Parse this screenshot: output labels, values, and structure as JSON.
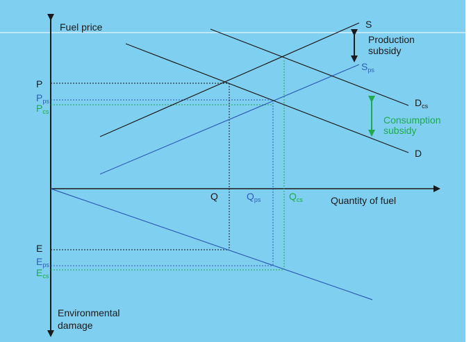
{
  "colors": {
    "background": "#7fcff1",
    "border": "#ffffff",
    "black": "#1a1a1a",
    "blue": "#2d5fb5",
    "green": "#1faa4b"
  },
  "axes": {
    "y_label": "Fuel price",
    "x_label": "Quantity of fuel",
    "lower_label_line1": "Environmental",
    "lower_label_line2": "damage"
  },
  "curves": {
    "supply": {
      "label": "S"
    },
    "supply_ps": {
      "label": "S",
      "sub": "ps"
    },
    "demand": {
      "label": "D"
    },
    "demand_cs": {
      "label": "D",
      "sub": "cs"
    },
    "damage": {
      "label": ""
    }
  },
  "prices": {
    "p": {
      "label": "P"
    },
    "p_ps": {
      "label": "P",
      "sub": "ps"
    },
    "p_cs": {
      "label": "P",
      "sub": "cs"
    }
  },
  "quantities": {
    "q": {
      "label": "Q"
    },
    "q_ps": {
      "label": "Q",
      "sub": "ps"
    },
    "q_cs": {
      "label": "Q",
      "sub": "cs"
    }
  },
  "damages": {
    "e": {
      "label": "E"
    },
    "e_ps": {
      "label": "E",
      "sub": "ps"
    },
    "e_cs": {
      "label": "E",
      "sub": "cs"
    }
  },
  "annotations": {
    "production_line1": "Production",
    "production_line2": "subsidy",
    "consumption_line1": "Consumption",
    "consumption_line2": "subsidy"
  },
  "icons": [
    "double-arrow-icon"
  ]
}
